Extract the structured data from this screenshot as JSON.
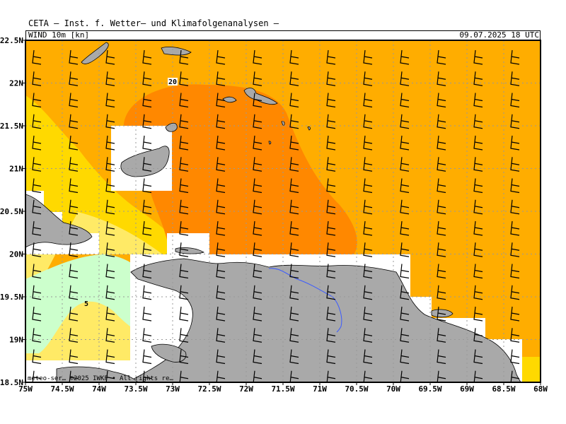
{
  "header": {
    "title": "CETA — Inst. f. Wetter— und Klimafolgenanalysen —",
    "variable": "WIND  10m  [kn]",
    "datetime": "09.07.2025  18  UTC"
  },
  "map": {
    "lon_range": [
      -75,
      -68
    ],
    "lat_range": [
      18.5,
      22.5
    ],
    "lon_labels": [
      "75W",
      "74.5W",
      "74W",
      "73.5W",
      "73W",
      "72.5W",
      "72W",
      "71.5W",
      "71W",
      "70.5W",
      "70W",
      "69.5W",
      "69W",
      "68.5W",
      "68W"
    ],
    "lat_labels": [
      "22.5N",
      "22N",
      "21.5N",
      "21N",
      "20.5N",
      "20N",
      "19.5N",
      "19N",
      "18.5N"
    ],
    "contour_labels": [
      "20",
      "5"
    ],
    "copyright": "meteo-ser… ©2025 IWKF • All rights re…",
    "colors": {
      "speed_20_plus": "#ff8800",
      "speed_15_20": "#ffad00",
      "speed_10_15": "#ffd900",
      "speed_5_10": "#ffea66",
      "speed_0_5": "#ccffcc",
      "land": "#a9a9a9",
      "grid": "#999999"
    },
    "wind_barbs": "westward flow, mostly 15-20 kn, arrows pointing from east"
  }
}
